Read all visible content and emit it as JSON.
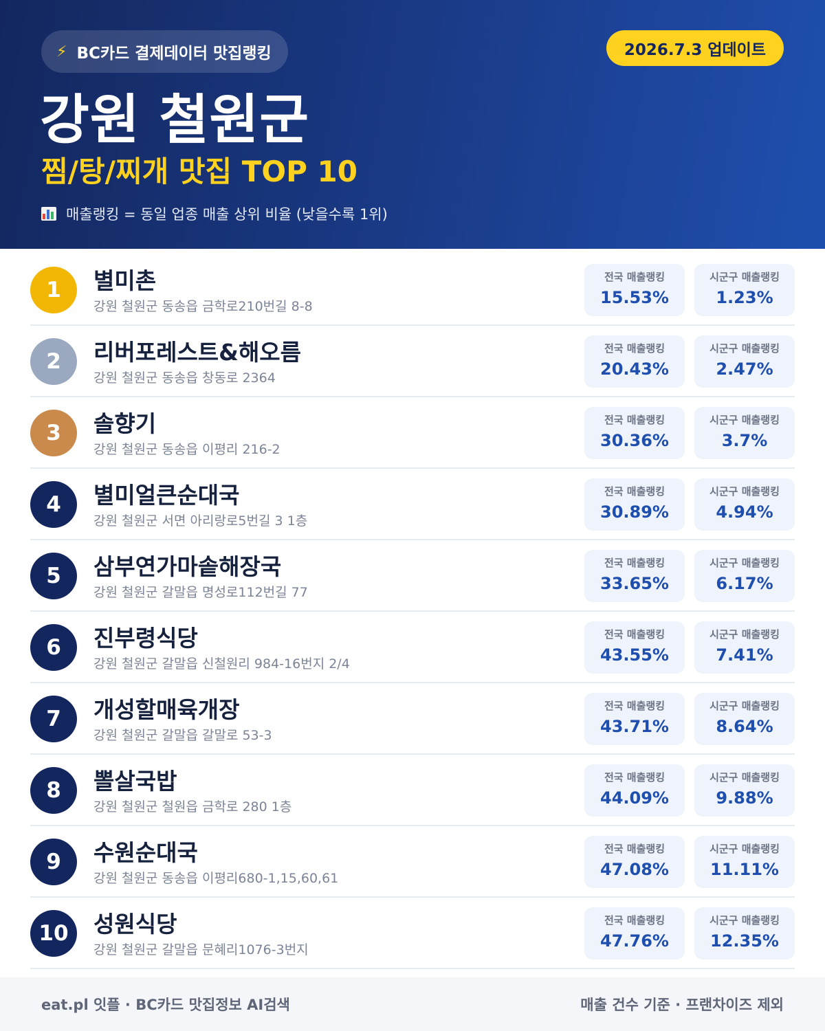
{
  "header": {
    "source_icon": "lightning-bolt-icon",
    "source_label": "BC카드 결제데이터 맛집랭킹",
    "updated": "2026.7.3 업데이트",
    "region": "강원 철원군",
    "category": "찜/탕/찌개 맛집 TOP 10",
    "legend_icon": "bar-chart-icon",
    "legend": "매출랭킹 = 동일 업종 매출 상위 비율 (낮을수록 1위)"
  },
  "labels": {
    "national": "전국 매출랭킹",
    "local": "시군구 매출랭킹"
  },
  "colors": {
    "gold": "#f2b705",
    "silver": "#9aa8c0",
    "bronze": "#c98a4b",
    "navy": "#13275e",
    "accent": "#ffd21f"
  },
  "restaurants": [
    {
      "rank": "1",
      "name": "별미촌",
      "address": "강원 철원군 동송읍 금학로210번길 8-8",
      "national": "15.53%",
      "local": "1.23%"
    },
    {
      "rank": "2",
      "name": "리버포레스트&해오름",
      "address": "강원 철원군 동송읍 창동로 2364",
      "national": "20.43%",
      "local": "2.47%"
    },
    {
      "rank": "3",
      "name": "솔향기",
      "address": "강원 철원군 동송읍 이평리 216-2",
      "national": "30.36%",
      "local": "3.7%"
    },
    {
      "rank": "4",
      "name": "별미얼큰순대국",
      "address": "강원 철원군 서면 아리랑로5번길 3 1층",
      "national": "30.89%",
      "local": "4.94%"
    },
    {
      "rank": "5",
      "name": "삼부연가마솥해장국",
      "address": "강원 철원군 갈말읍 명성로112번길 77",
      "national": "33.65%",
      "local": "6.17%"
    },
    {
      "rank": "6",
      "name": "진부령식당",
      "address": "강원 철원군 갈말읍 신철원리 984-16번지 2/4",
      "national": "43.55%",
      "local": "7.41%"
    },
    {
      "rank": "7",
      "name": "개성할매육개장",
      "address": "강원 철원군 갈말읍 갈말로 53-3",
      "national": "43.71%",
      "local": "8.64%"
    },
    {
      "rank": "8",
      "name": "뽈살국밥",
      "address": "강원 철원군 철원읍 금학로 280 1층",
      "national": "44.09%",
      "local": "9.88%"
    },
    {
      "rank": "9",
      "name": "수원순대국",
      "address": "강원 철원군 동송읍 이평리680-1,15,60,61",
      "national": "47.08%",
      "local": "11.11%"
    },
    {
      "rank": "10",
      "name": "성원식당",
      "address": "강원 철원군 갈말읍 문혜리1076-3번지",
      "national": "47.76%",
      "local": "12.35%"
    }
  ],
  "footer": {
    "left": "eat.pl 잇플 · BC카드 맛집정보 AI검색",
    "right": "매출 건수 기준 · 프랜차이즈 제외"
  }
}
